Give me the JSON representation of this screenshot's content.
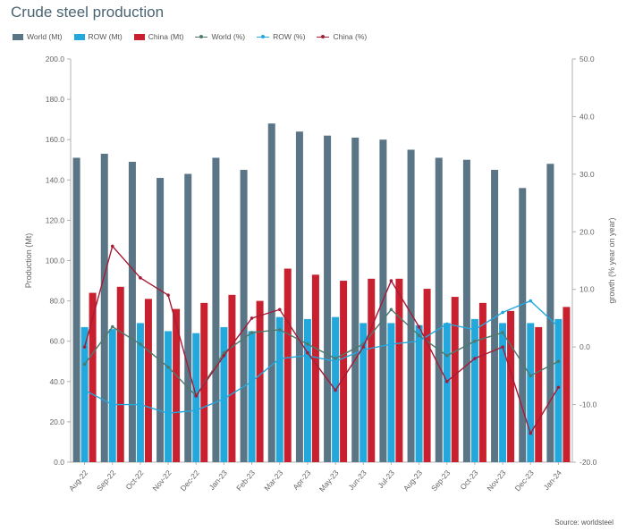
{
  "chart_data": {
    "type": "bar",
    "title": "Crude steel production",
    "categories": [
      "Aug-22",
      "Sep-22",
      "Oct-22",
      "Nov-22",
      "Dec-22",
      "Jan-23",
      "Feb-23",
      "Mar-23",
      "Apr-23",
      "May-23",
      "Jun-23",
      "Jul-23",
      "Aug-23",
      "Sep-23",
      "Oct-23",
      "Nov-23",
      "Dec-23",
      "Jan-24"
    ],
    "bar_series": [
      {
        "name": "World (Mt)",
        "color": "#5a7585",
        "values": [
          151,
          153,
          149,
          141,
          143,
          151,
          145,
          168,
          164,
          162,
          161,
          160,
          155,
          151,
          150,
          145,
          136,
          148
        ]
      },
      {
        "name": "ROW (Mt)",
        "color": "#22a8dc",
        "values": [
          67,
          66,
          69,
          65,
          64,
          67,
          65,
          72,
          71,
          72,
          69,
          69,
          68,
          69,
          71,
          69,
          69,
          71
        ]
      },
      {
        "name": "China (Mt)",
        "color": "#c8202f",
        "values": [
          84,
          87,
          81,
          76,
          79,
          83,
          80,
          96,
          93,
          90,
          91,
          91,
          86,
          82,
          79,
          75,
          67,
          77
        ]
      }
    ],
    "line_series": [
      {
        "name": "World (%)",
        "color": "#4e7a6e",
        "values": [
          -3,
          3.5,
          0.5,
          -3.5,
          -8.5,
          -1,
          2.5,
          3,
          0.5,
          -2,
          0.5,
          6.5,
          2,
          -1.5,
          1,
          2.5,
          -5,
          -2.5
        ]
      },
      {
        "name": "ROW (%)",
        "color": "#22a8dc",
        "values": [
          -7.5,
          -10,
          -10,
          -11.5,
          -11,
          -9,
          -6,
          -2,
          -1.5,
          -2.5,
          -0.5,
          0.5,
          1,
          4,
          3,
          6,
          8,
          3.5
        ]
      },
      {
        "name": "China (%)",
        "color": "#a51c36",
        "values": [
          0,
          17.5,
          12,
          9,
          -8.5,
          -1.5,
          5,
          6.5,
          -1,
          -7.5,
          0,
          11.5,
          3.5,
          -6,
          -2,
          0,
          -15,
          -7
        ]
      }
    ],
    "ylabel": "Production (Mt)",
    "ylim": [
      0,
      200
    ],
    "y_ticks": [
      "0.0",
      "20.0",
      "40.0",
      "60.0",
      "80.0",
      "100.0",
      "120.0",
      "140.0",
      "160.0",
      "180.0",
      "200.0"
    ],
    "y2label": "growth (% year on year)",
    "y2lim": [
      -20,
      50
    ],
    "y2_ticks": [
      "-20.0",
      "-10.0",
      "0.0",
      "10.0",
      "20.0",
      "30.0",
      "40.0",
      "50.0"
    ],
    "grid": false,
    "legend_position": "top-left"
  },
  "source": "Source: worldsteel"
}
